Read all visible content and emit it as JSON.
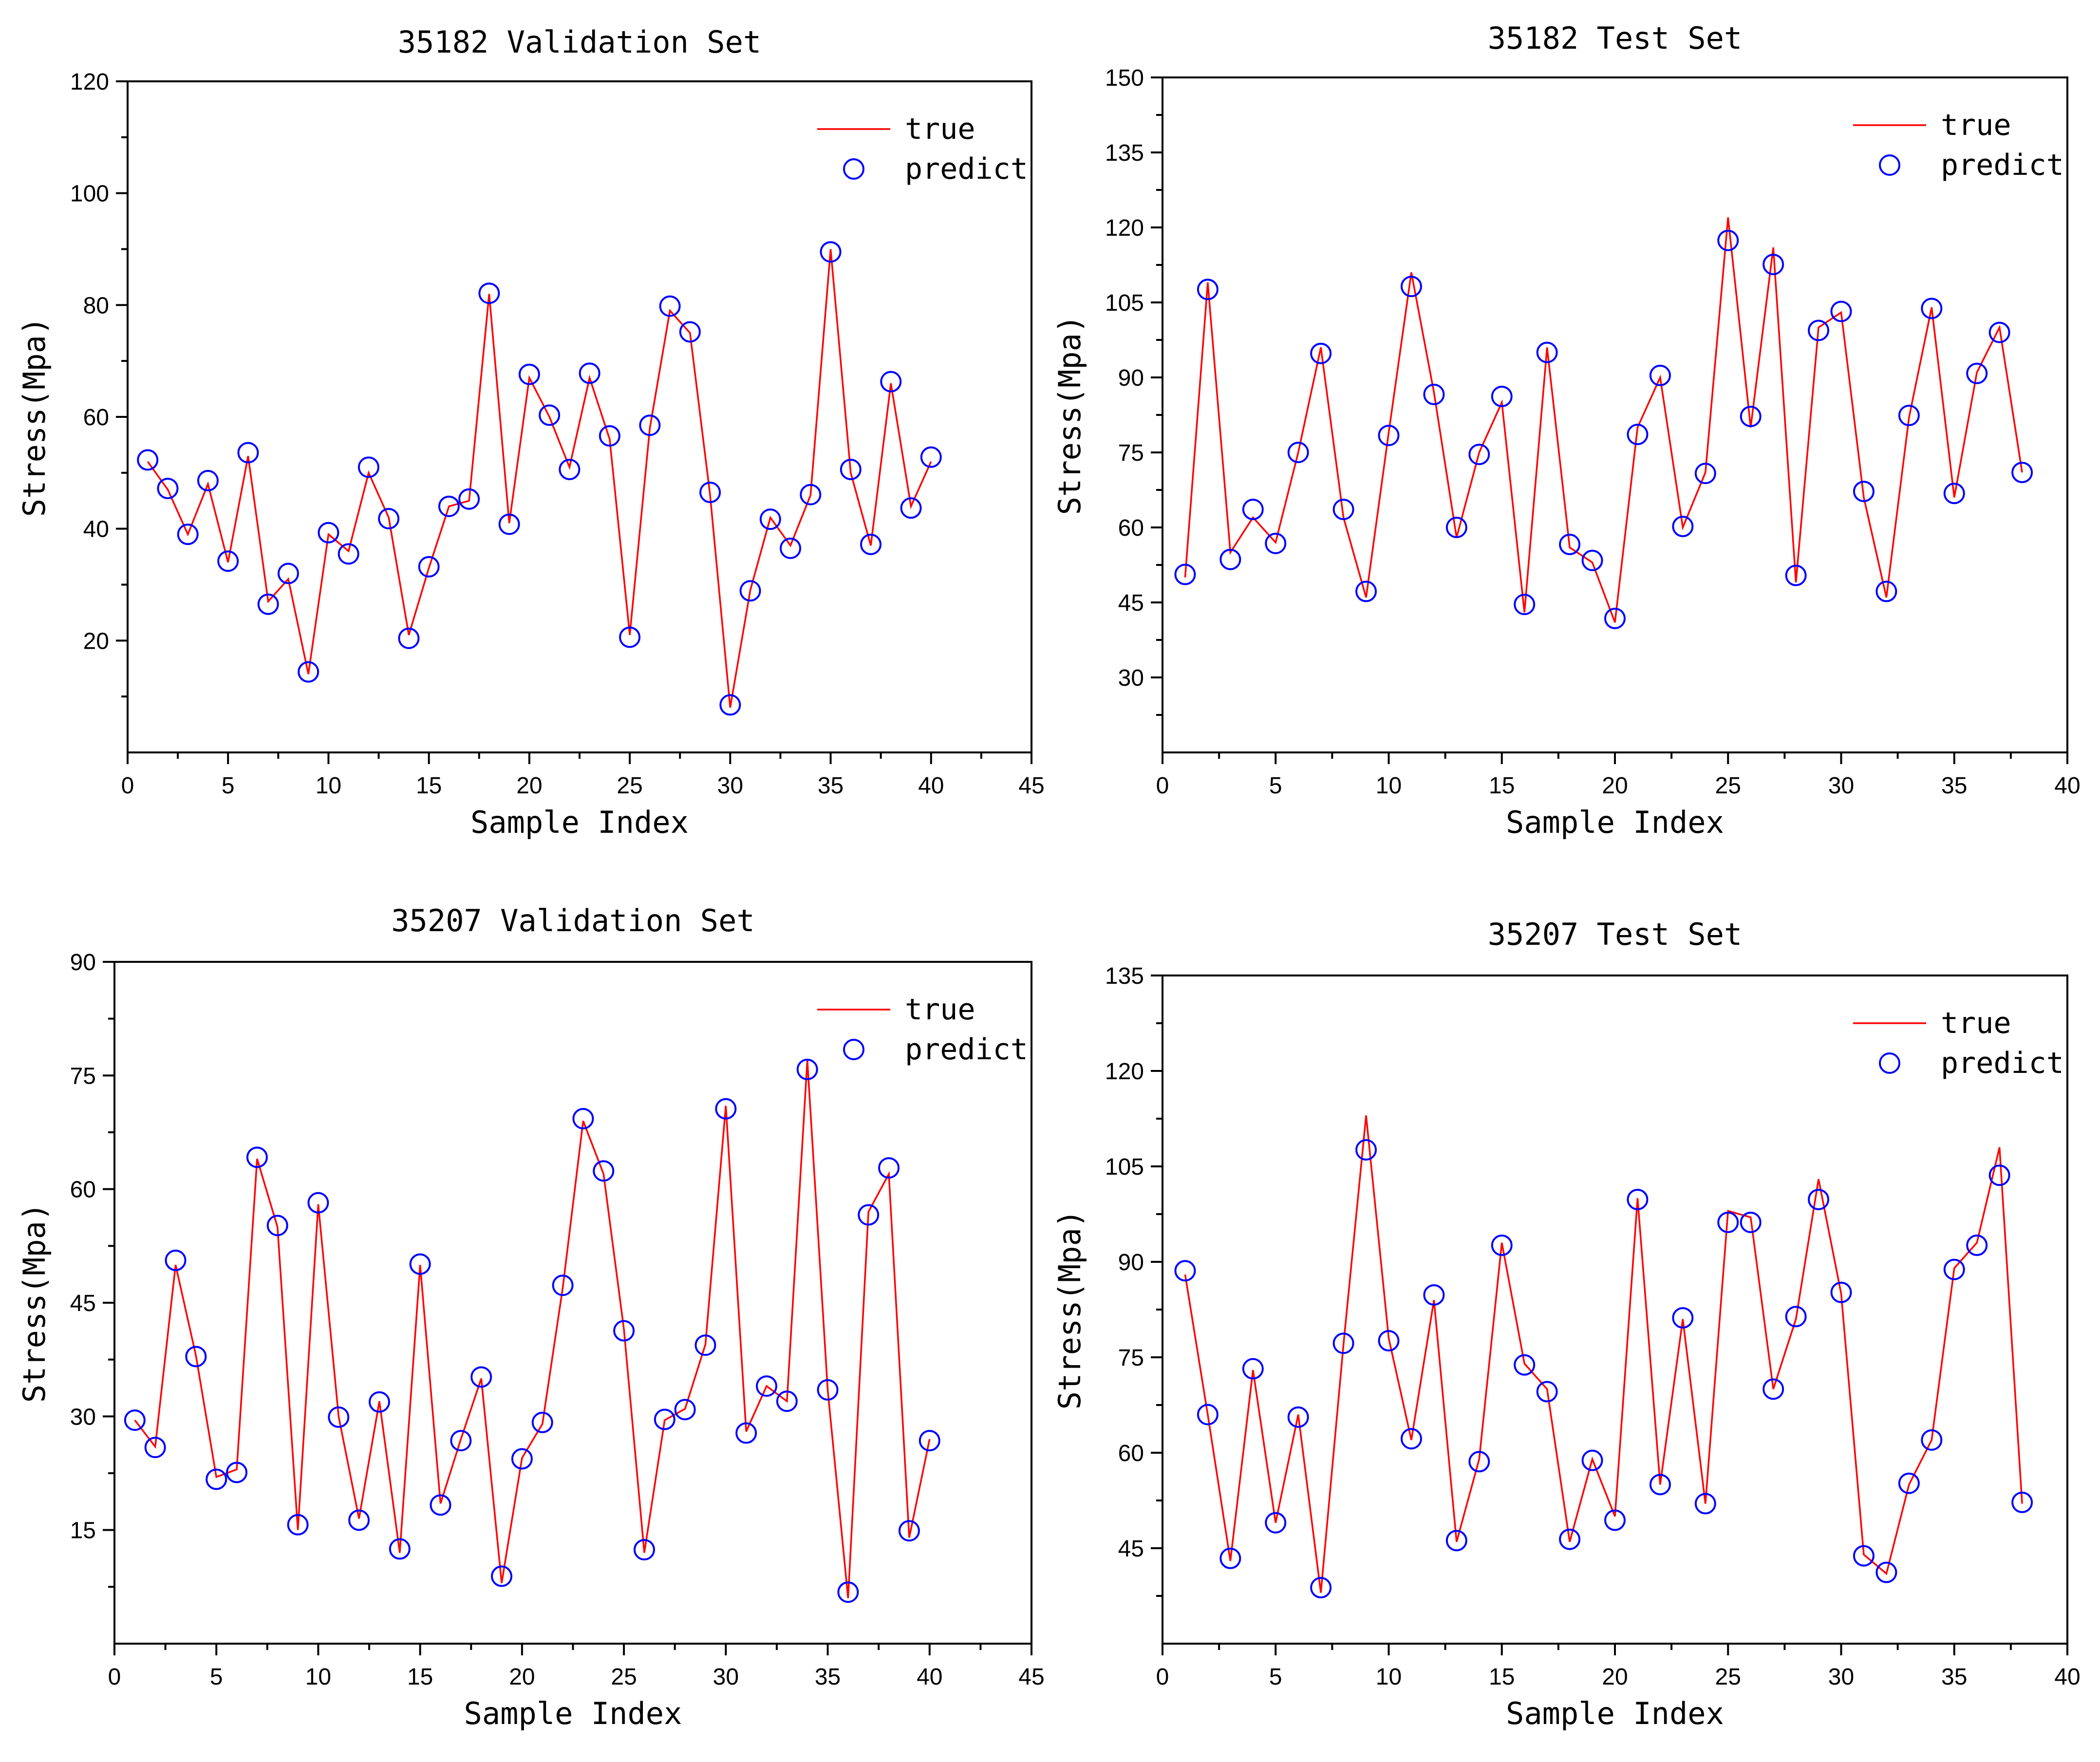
{
  "chart_data": [
    {
      "type": "line",
      "title": "35182 Validation Set",
      "xlabel": "Sample Index",
      "ylabel": "Stress(Mpa)",
      "xlim": [
        0,
        45
      ],
      "ylim": [
        0,
        120
      ],
      "xticks": [
        0,
        5,
        10,
        15,
        20,
        25,
        30,
        35,
        40,
        45
      ],
      "yticks": [
        20,
        40,
        60,
        80,
        100,
        120
      ],
      "legend": "top-right",
      "series": [
        {
          "name": "true",
          "color": "#ff0000",
          "style": "line",
          "values": [
            52,
            47,
            39,
            48,
            34,
            53,
            27,
            31,
            14,
            39,
            36,
            50,
            42,
            21,
            33,
            44,
            45,
            82,
            41,
            67,
            60,
            51,
            67,
            56,
            21,
            58,
            79,
            75,
            46,
            8,
            29,
            42,
            37,
            46,
            90,
            50,
            37,
            66,
            44,
            52
          ]
        },
        {
          "name": "predict",
          "color": "#0000ff",
          "style": "circle",
          "values": [
            52.3,
            47.2,
            39.0,
            48.6,
            34.2,
            53.6,
            26.5,
            32.0,
            14.4,
            39.3,
            35.5,
            51.0,
            41.8,
            20.4,
            33.2,
            44.0,
            45.3,
            82.1,
            40.8,
            67.6,
            60.3,
            50.6,
            67.8,
            56.6,
            20.6,
            58.5,
            79.8,
            75.2,
            46.5,
            8.5,
            28.9,
            41.7,
            36.5,
            46.1,
            89.5,
            50.6,
            37.2,
            66.3,
            43.7,
            52.8
          ]
        }
      ]
    },
    {
      "type": "line",
      "title": "35182 Test Set",
      "xlabel": "Sample Index",
      "ylabel": "Stress(Mpa)",
      "xlim": [
        0,
        40
      ],
      "ylim": [
        15,
        150
      ],
      "xticks": [
        0,
        5,
        10,
        15,
        20,
        25,
        30,
        35,
        40
      ],
      "yticks": [
        30,
        45,
        60,
        75,
        90,
        105,
        120,
        135,
        150
      ],
      "legend": "top-right",
      "series": [
        {
          "name": "true",
          "color": "#ff0000",
          "style": "line",
          "values": [
            50,
            109,
            55,
            62,
            57,
            75,
            96,
            62,
            46,
            79,
            111,
            87,
            58,
            75,
            85,
            43,
            96,
            56,
            53,
            41,
            80,
            90,
            60,
            71,
            122,
            80,
            116,
            49,
            100,
            103,
            66,
            46,
            82,
            104,
            66,
            91,
            100,
            71
          ]
        },
        {
          "name": "predict",
          "color": "#0000ff",
          "style": "circle",
          "values": [
            50.6,
            107.6,
            53.6,
            63.6,
            56.8,
            75.0,
            94.8,
            63.6,
            47.2,
            78.4,
            108.2,
            86.6,
            60.0,
            74.6,
            86.2,
            44.6,
            95.0,
            56.6,
            53.4,
            41.8,
            78.6,
            90.4,
            60.2,
            70.8,
            117.4,
            82.2,
            112.6,
            50.4,
            99.4,
            103.2,
            67.2,
            47.2,
            82.4,
            103.8,
            66.8,
            90.8,
            99.0,
            71.0
          ]
        }
      ]
    },
    {
      "type": "line",
      "title": "35207 Validation Set",
      "xlabel": "Sample Index",
      "ylabel": "Stress(Mpa)",
      "xlim": [
        0,
        45
      ],
      "ylim": [
        0,
        90
      ],
      "xticks": [
        0,
        5,
        10,
        15,
        20,
        25,
        30,
        35,
        40,
        45
      ],
      "yticks": [
        15,
        30,
        45,
        60,
        75,
        90
      ],
      "legend": "top-right",
      "series": [
        {
          "name": "true",
          "color": "#ff0000",
          "style": "line",
          "values": [
            29.5,
            26.0,
            50.0,
            38.0,
            22.0,
            23.0,
            64.0,
            55.0,
            15.0,
            58.0,
            30.0,
            16.5,
            32.0,
            12.0,
            50.0,
            18.5,
            27.0,
            35.0,
            8.0,
            24.5,
            29.0,
            47.0,
            69.0,
            62.0,
            41.5,
            12.0,
            29.5,
            31.0,
            39.5,
            71.0,
            28.0,
            34.0,
            32.0,
            77.0,
            33.5,
            6.0,
            57.0,
            62.0,
            14.0,
            27.0
          ]
        },
        {
          "name": "predict",
          "color": "#0000ff",
          "style": "circle",
          "values": [
            29.5,
            25.9,
            50.6,
            37.9,
            21.7,
            22.6,
            64.2,
            55.2,
            15.7,
            58.2,
            29.9,
            16.3,
            31.9,
            12.5,
            50.1,
            18.3,
            26.8,
            35.2,
            8.9,
            24.4,
            29.2,
            47.3,
            69.3,
            62.4,
            41.3,
            12.4,
            29.6,
            30.9,
            39.4,
            70.6,
            27.8,
            34.0,
            32.0,
            75.8,
            33.5,
            6.8,
            56.6,
            62.8,
            14.9,
            26.8
          ]
        }
      ]
    },
    {
      "type": "line",
      "title": "35207 Test Set",
      "xlabel": "Sample Index",
      "ylabel": "Stress(Mpa)",
      "xlim": [
        0,
        40
      ],
      "ylim": [
        30,
        135
      ],
      "xticks": [
        0,
        5,
        10,
        15,
        20,
        25,
        30,
        35,
        40
      ],
      "yticks": [
        45,
        60,
        75,
        90,
        105,
        120,
        135
      ],
      "legend": "top-right",
      "series": [
        {
          "name": "true",
          "color": "#ff0000",
          "style": "line",
          "values": [
            88,
            66,
            43,
            73,
            49,
            66,
            38,
            77,
            113,
            78,
            62,
            84,
            46,
            59,
            93,
            74,
            70,
            46,
            59,
            50,
            100,
            55,
            81,
            52,
            98,
            97,
            70,
            81,
            103,
            85,
            44,
            41,
            55,
            62,
            89,
            93,
            108,
            52
          ]
        },
        {
          "name": "predict",
          "color": "#0000ff",
          "style": "circle",
          "values": [
            88.6,
            66.0,
            43.4,
            73.2,
            49.0,
            65.6,
            38.8,
            77.2,
            107.6,
            77.6,
            62.2,
            84.8,
            46.2,
            58.6,
            92.6,
            73.8,
            69.6,
            46.4,
            58.8,
            49.4,
            99.8,
            55.0,
            81.2,
            52.0,
            96.2,
            96.2,
            70.0,
            81.4,
            99.8,
            85.2,
            43.8,
            41.2,
            55.2,
            62.0,
            88.8,
            92.6,
            103.6,
            52.2
          ]
        }
      ]
    }
  ]
}
